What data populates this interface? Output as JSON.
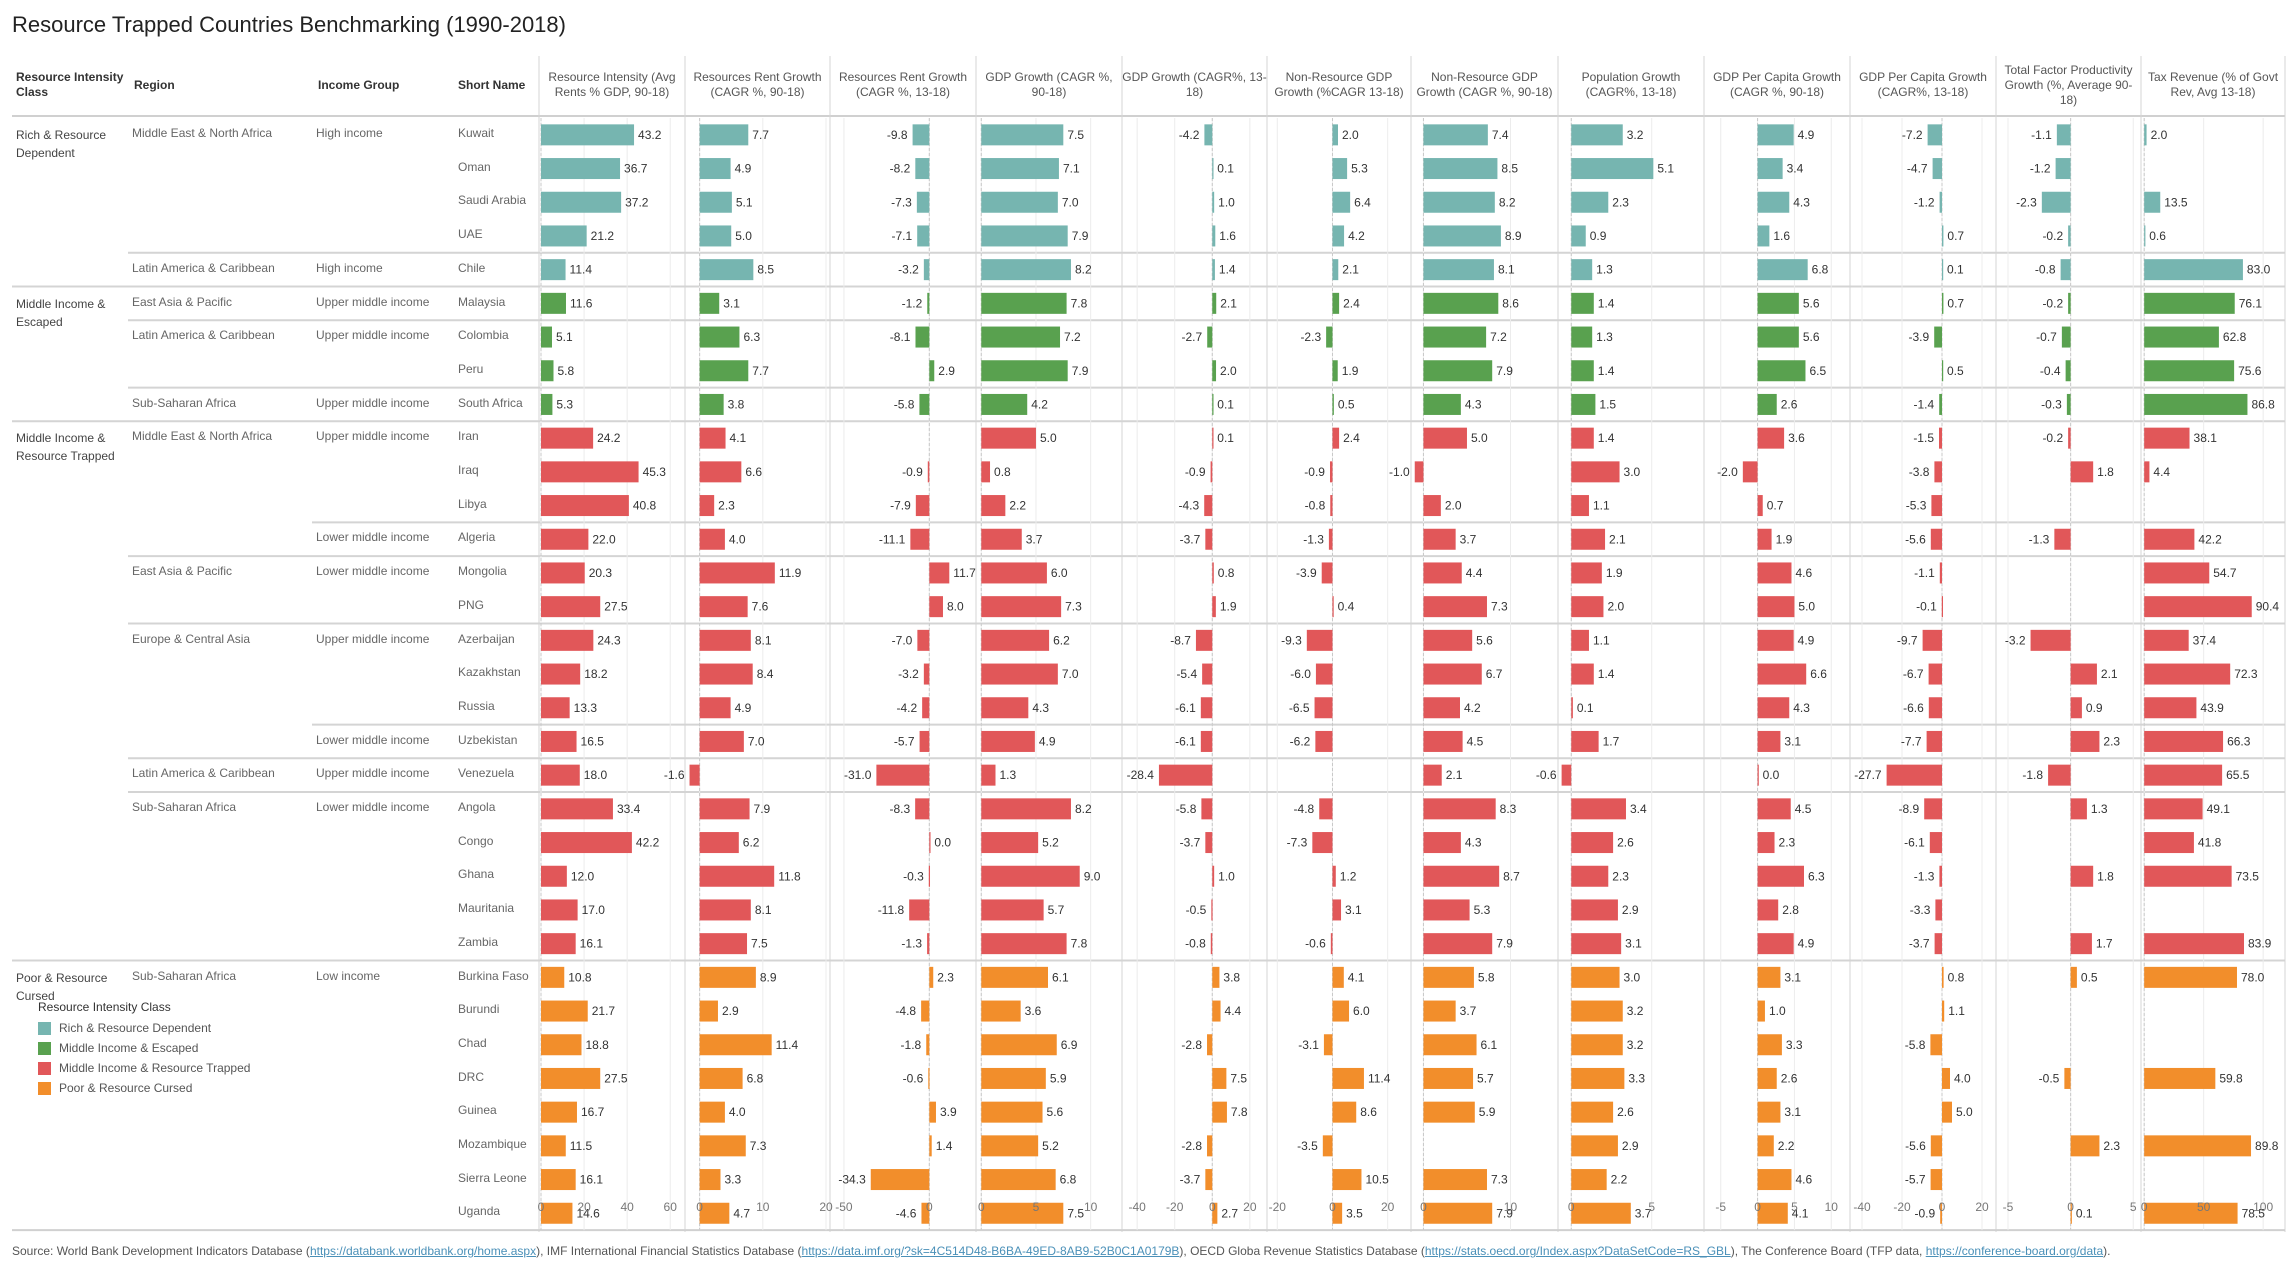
{
  "title": "Resource Trapped Countries Benchmarking (1990-2018)",
  "row_headers": {
    "class": "Resource Intensity Class",
    "region": "Region",
    "income": "Income Group",
    "name": "Short Name"
  },
  "colors": {
    "Rich & Resource Dependent": "#76b5b0",
    "Middle Income & Escaped": "#59a14f",
    "Middle Income & Resource Trapped": "#e15759",
    "Poor & Resource Cursed": "#f28e2b"
  },
  "legend": {
    "title": "Resource Intensity Class",
    "items": [
      "Rich & Resource Dependent",
      "Middle Income & Escaped",
      "Middle Income & Resource Trapped",
      "Poor & Resource Cursed"
    ]
  },
  "footer": {
    "prefix": "Source: World Bank Development Indicators Database (",
    "link1": "https://databank.worldbank.org/home.aspx",
    "mid1": "), IMF International Financial Statistics Database (",
    "link2": "https://data.imf.org/?sk=4C514D48-B6BA-49ED-8AB9-52B0C1A0179B",
    "mid2": "), OECD Globa Revenue Statistics Database (",
    "link3": "https://stats.oecd.org/Index.aspx?DataSetCode=RS_GBL",
    "mid3": "), The Conference Board (TFP data, ",
    "link4": "https://conference-board.org/data",
    "suffix": ")."
  },
  "chart_data": {
    "type": "table",
    "title": "Resource Trapped Countries Benchmarking (1990-2018)",
    "measures": [
      {
        "label": "Resource Intensity (Avg Rents % GDP, 90-18)",
        "ticks": [
          0,
          20,
          40,
          60
        ],
        "range": [
          0,
          65
        ]
      },
      {
        "label": "Resources Rent Growth (CAGR %, 90-18)",
        "ticks": [
          0,
          10,
          20
        ],
        "range": [
          -2,
          20
        ]
      },
      {
        "label": "Resources Rent Growth (CAGR %, 13-18)",
        "ticks": [
          -50,
          0
        ],
        "range": [
          -57,
          25
        ]
      },
      {
        "label": "GDP Growth (CAGR %, 90-18)",
        "ticks": [
          0,
          5,
          10
        ],
        "range": [
          -0.3,
          12.5
        ]
      },
      {
        "label": "GDP Growth (CAGR%, 13-18)",
        "ticks": [
          -40,
          -20,
          0,
          20
        ],
        "range": [
          -47,
          27
        ]
      },
      {
        "label": "Non-Resource GDP Growth (%CAGR 13-18)",
        "ticks": [
          -20,
          0,
          20
        ],
        "range": [
          -23,
          27
        ]
      },
      {
        "label": "Non-Resource GDP Growth (CAGR %, 90-18)",
        "ticks": [
          0,
          10
        ],
        "range": [
          -1.2,
          15
        ]
      },
      {
        "label": "Population Growth (CAGR%, 13-18)",
        "ticks": [
          0,
          5
        ],
        "range": [
          -0.7,
          8
        ]
      },
      {
        "label": "GDP Per Capita Growth (CAGR %, 90-18)",
        "ticks": [
          -5,
          0,
          5,
          10
        ],
        "range": [
          -7,
          12
        ]
      },
      {
        "label": "GDP Per Capita Growth (CAGR%, 13-18)",
        "ticks": [
          -40,
          -20,
          0,
          20
        ],
        "range": [
          -45,
          25
        ]
      },
      {
        "label": "Total Factor Productivity Growth (%, Average 90-18)",
        "ticks": [
          -5,
          0,
          5
        ],
        "range": [
          -5.8,
          5.3
        ]
      },
      {
        "label": "Tax Revenue (% of Govt Rev, Avg 13-18)",
        "ticks": [
          0,
          50,
          100
        ],
        "range": [
          -1,
          115
        ]
      }
    ],
    "rows": [
      {
        "cls": "Rich & Resource Dependent",
        "region": "Middle East & North Africa",
        "income": "High income",
        "name": "Kuwait",
        "values": [
          43.2,
          7.7,
          -9.8,
          7.5,
          -4.2,
          2.0,
          7.4,
          3.2,
          4.9,
          -7.2,
          -1.1,
          2.0
        ]
      },
      {
        "cls": "Rich & Resource Dependent",
        "region": "Middle East & North Africa",
        "income": "High income",
        "name": "Oman",
        "values": [
          36.7,
          4.9,
          -8.2,
          7.1,
          0.1,
          5.3,
          8.5,
          5.1,
          3.4,
          -4.7,
          -1.2,
          null
        ]
      },
      {
        "cls": "Rich & Resource Dependent",
        "region": "Middle East & North Africa",
        "income": "High income",
        "name": "Saudi Arabia",
        "values": [
          37.2,
          5.1,
          -7.3,
          7.0,
          1.0,
          6.4,
          8.2,
          2.3,
          4.3,
          -1.2,
          -2.3,
          13.5
        ]
      },
      {
        "cls": "Rich & Resource Dependent",
        "region": "Middle East & North Africa",
        "income": "High income",
        "name": "UAE",
        "values": [
          21.2,
          5.0,
          -7.1,
          7.9,
          1.6,
          4.2,
          8.9,
          0.9,
          1.6,
          0.7,
          -0.2,
          0.6
        ]
      },
      {
        "cls": "Rich & Resource Dependent",
        "region": "Latin America & Caribbean",
        "income": "High income",
        "name": "Chile",
        "values": [
          11.4,
          8.5,
          -3.2,
          8.2,
          1.4,
          2.1,
          8.1,
          1.3,
          6.8,
          0.1,
          -0.8,
          83.0
        ]
      },
      {
        "cls": "Middle Income & Escaped",
        "region": "East Asia & Pacific",
        "income": "Upper middle income",
        "name": "Malaysia",
        "values": [
          11.6,
          3.1,
          -1.2,
          7.8,
          2.1,
          2.4,
          8.6,
          1.4,
          5.6,
          0.7,
          -0.2,
          76.1
        ]
      },
      {
        "cls": "Middle Income & Escaped",
        "region": "Latin America & Caribbean",
        "income": "Upper middle income",
        "name": "Colombia",
        "values": [
          5.1,
          6.3,
          -8.1,
          7.2,
          -2.7,
          -2.3,
          7.2,
          1.3,
          5.6,
          -3.9,
          -0.7,
          62.8
        ]
      },
      {
        "cls": "Middle Income & Escaped",
        "region": "Latin America & Caribbean",
        "income": "Upper middle income",
        "name": "Peru",
        "values": [
          5.8,
          7.7,
          2.9,
          7.9,
          2.0,
          1.9,
          7.9,
          1.4,
          6.5,
          0.5,
          -0.4,
          75.6
        ]
      },
      {
        "cls": "Middle Income & Escaped",
        "region": "Sub-Saharan Africa",
        "income": "Upper middle income",
        "name": "South Africa",
        "values": [
          5.3,
          3.8,
          -5.8,
          4.2,
          0.1,
          0.5,
          4.3,
          1.5,
          2.6,
          -1.4,
          -0.3,
          86.8
        ]
      },
      {
        "cls": "Middle Income & Resource Trapped",
        "region": "Middle East & North Africa",
        "income": "Upper middle income",
        "name": "Iran",
        "values": [
          24.2,
          4.1,
          null,
          5.0,
          0.1,
          2.4,
          5.0,
          1.4,
          3.6,
          -1.5,
          -0.2,
          38.1
        ]
      },
      {
        "cls": "Middle Income & Resource Trapped",
        "region": "Middle East & North Africa",
        "income": "Upper middle income",
        "name": "Iraq",
        "values": [
          45.3,
          6.6,
          -0.9,
          0.8,
          -0.9,
          -0.9,
          -1.0,
          3.0,
          -2.0,
          -3.8,
          1.8,
          4.4
        ]
      },
      {
        "cls": "Middle Income & Resource Trapped",
        "region": "Middle East & North Africa",
        "income": "Upper middle income",
        "name": "Libya",
        "values": [
          40.8,
          2.3,
          -7.9,
          2.2,
          -4.3,
          -0.8,
          2.0,
          1.1,
          0.7,
          -5.3,
          null,
          null
        ]
      },
      {
        "cls": "Middle Income & Resource Trapped",
        "region": "Middle East & North Africa",
        "income": "Lower middle income",
        "name": "Algeria",
        "values": [
          22.0,
          4.0,
          -11.1,
          3.7,
          -3.7,
          -1.3,
          3.7,
          2.1,
          1.9,
          -5.6,
          -1.3,
          42.2
        ]
      },
      {
        "cls": "Middle Income & Resource Trapped",
        "region": "East Asia & Pacific",
        "income": "Lower middle income",
        "name": "Mongolia",
        "values": [
          20.3,
          11.9,
          11.7,
          6.0,
          0.8,
          -3.9,
          4.4,
          1.9,
          4.6,
          -1.1,
          null,
          54.7
        ]
      },
      {
        "cls": "Middle Income & Resource Trapped",
        "region": "East Asia & Pacific",
        "income": "Lower middle income",
        "name": "PNG",
        "values": [
          27.5,
          7.6,
          8.0,
          7.3,
          1.9,
          0.4,
          7.3,
          2.0,
          5.0,
          -0.1,
          null,
          90.4
        ]
      },
      {
        "cls": "Middle Income & Resource Trapped",
        "region": "Europe & Central Asia",
        "income": "Upper middle income",
        "name": "Azerbaijan",
        "values": [
          24.3,
          8.1,
          -7.0,
          6.2,
          -8.7,
          -9.3,
          5.6,
          1.1,
          4.9,
          -9.7,
          -3.2,
          37.4
        ]
      },
      {
        "cls": "Middle Income & Resource Trapped",
        "region": "Europe & Central Asia",
        "income": "Upper middle income",
        "name": "Kazakhstan",
        "values": [
          18.2,
          8.4,
          -3.2,
          7.0,
          -5.4,
          -6.0,
          6.7,
          1.4,
          6.6,
          -6.7,
          2.1,
          72.3
        ]
      },
      {
        "cls": "Middle Income & Resource Trapped",
        "region": "Europe & Central Asia",
        "income": "Upper middle income",
        "name": "Russia",
        "values": [
          13.3,
          4.9,
          -4.2,
          4.3,
          -6.1,
          -6.5,
          4.2,
          0.1,
          4.3,
          -6.6,
          0.9,
          43.9
        ]
      },
      {
        "cls": "Middle Income & Resource Trapped",
        "region": "Europe & Central Asia",
        "income": "Lower middle income",
        "name": "Uzbekistan",
        "values": [
          16.5,
          7.0,
          -5.7,
          4.9,
          -6.1,
          -6.2,
          4.5,
          1.7,
          3.1,
          -7.7,
          2.3,
          66.3
        ]
      },
      {
        "cls": "Middle Income & Resource Trapped",
        "region": "Latin America & Caribbean",
        "income": "Upper middle income",
        "name": "Venezuela",
        "values": [
          18.0,
          -1.6,
          -31.0,
          1.3,
          -28.4,
          null,
          2.1,
          -0.6,
          0.0,
          -27.7,
          -1.8,
          65.5
        ]
      },
      {
        "cls": "Middle Income & Resource Trapped",
        "region": "Sub-Saharan Africa",
        "income": "Lower middle income",
        "name": "Angola",
        "values": [
          33.4,
          7.9,
          -8.3,
          8.2,
          -5.8,
          -4.8,
          8.3,
          3.4,
          4.5,
          -8.9,
          1.3,
          49.1
        ]
      },
      {
        "cls": "Middle Income & Resource Trapped",
        "region": "Sub-Saharan Africa",
        "income": "Lower middle income",
        "name": "Congo",
        "values": [
          42.2,
          6.2,
          0.0,
          5.2,
          -3.7,
          -7.3,
          4.3,
          2.6,
          2.3,
          -6.1,
          null,
          41.8
        ]
      },
      {
        "cls": "Middle Income & Resource Trapped",
        "region": "Sub-Saharan Africa",
        "income": "Lower middle income",
        "name": "Ghana",
        "values": [
          12.0,
          11.8,
          -0.3,
          9.0,
          1.0,
          1.2,
          8.7,
          2.3,
          6.3,
          -1.3,
          1.8,
          73.5
        ]
      },
      {
        "cls": "Middle Income & Resource Trapped",
        "region": "Sub-Saharan Africa",
        "income": "Lower middle income",
        "name": "Mauritania",
        "values": [
          17.0,
          8.1,
          -11.8,
          5.7,
          -0.5,
          3.1,
          5.3,
          2.9,
          2.8,
          -3.3,
          null,
          null
        ]
      },
      {
        "cls": "Middle Income & Resource Trapped",
        "region": "Sub-Saharan Africa",
        "income": "Lower middle income",
        "name": "Zambia",
        "values": [
          16.1,
          7.5,
          -1.3,
          7.8,
          -0.8,
          -0.6,
          7.9,
          3.1,
          4.9,
          -3.7,
          1.7,
          83.9
        ]
      },
      {
        "cls": "Poor & Resource Cursed",
        "region": "Sub-Saharan Africa",
        "income": "Low income",
        "name": "Burkina Faso",
        "values": [
          10.8,
          8.9,
          2.3,
          6.1,
          3.8,
          4.1,
          5.8,
          3.0,
          3.1,
          0.8,
          0.5,
          78.0
        ]
      },
      {
        "cls": "Poor & Resource Cursed",
        "region": "Sub-Saharan Africa",
        "income": "Low income",
        "name": "Burundi",
        "values": [
          21.7,
          2.9,
          -4.8,
          3.6,
          4.4,
          6.0,
          3.7,
          3.2,
          1.0,
          1.1,
          null,
          null
        ]
      },
      {
        "cls": "Poor & Resource Cursed",
        "region": "Sub-Saharan Africa",
        "income": "Low income",
        "name": "Chad",
        "values": [
          18.8,
          11.4,
          -1.8,
          6.9,
          -2.8,
          -3.1,
          6.1,
          3.2,
          3.3,
          -5.8,
          null,
          null
        ]
      },
      {
        "cls": "Poor & Resource Cursed",
        "region": "Sub-Saharan Africa",
        "income": "Low income",
        "name": "DRC",
        "values": [
          27.5,
          6.8,
          -0.6,
          5.9,
          7.5,
          11.4,
          5.7,
          3.3,
          2.6,
          4.0,
          -0.5,
          59.8
        ]
      },
      {
        "cls": "Poor & Resource Cursed",
        "region": "Sub-Saharan Africa",
        "income": "Low income",
        "name": "Guinea",
        "values": [
          16.7,
          4.0,
          3.9,
          5.6,
          7.8,
          8.6,
          5.9,
          2.6,
          3.1,
          5.0,
          null,
          null
        ]
      },
      {
        "cls": "Poor & Resource Cursed",
        "region": "Sub-Saharan Africa",
        "income": "Low income",
        "name": "Mozambique",
        "values": [
          11.5,
          7.3,
          1.4,
          5.2,
          -2.8,
          -3.5,
          null,
          2.9,
          2.2,
          -5.6,
          2.3,
          89.8
        ]
      },
      {
        "cls": "Poor & Resource Cursed",
        "region": "Sub-Saharan Africa",
        "income": "Low income",
        "name": "Sierra Leone",
        "values": [
          16.1,
          3.3,
          -34.3,
          6.8,
          -3.7,
          10.5,
          7.3,
          2.2,
          4.6,
          -5.7,
          null,
          null
        ]
      },
      {
        "cls": "Poor & Resource Cursed",
        "region": "Sub-Saharan Africa",
        "income": "Low income",
        "name": "Uganda",
        "values": [
          14.6,
          4.7,
          -4.6,
          7.5,
          2.7,
          3.5,
          7.9,
          3.7,
          4.1,
          -0.9,
          0.1,
          78.5
        ]
      }
    ]
  }
}
